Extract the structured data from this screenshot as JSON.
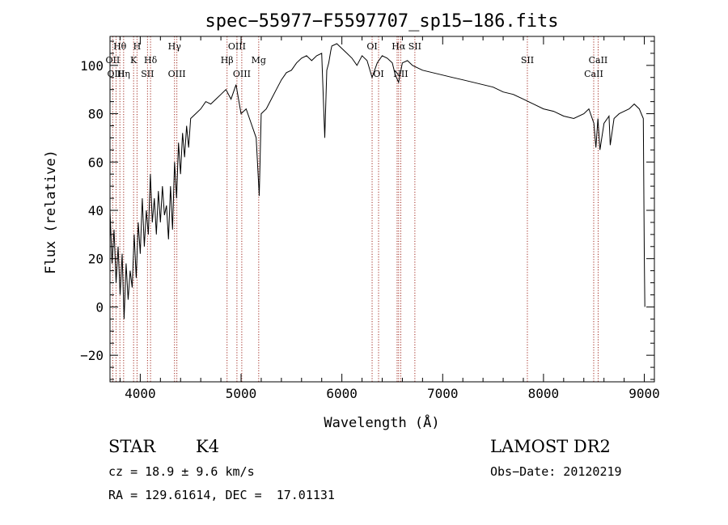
{
  "chart_data": {
    "type": "line",
    "title": "spec−55977−F5597707_sp15−186.fits",
    "xlabel": "Wavelength (Å)",
    "ylabel": "Flux (relative)",
    "xlim": [
      3700,
      9100
    ],
    "ylim": [
      -31,
      112
    ],
    "x_ticks": [
      4000,
      5000,
      6000,
      7000,
      8000,
      9000
    ],
    "y_ticks": [
      -20,
      0,
      20,
      40,
      60,
      80,
      100
    ],
    "series": [
      {
        "x": [
          3700,
          3720,
          3740,
          3760,
          3780,
          3800,
          3820,
          3840,
          3860,
          3880,
          3900,
          3920,
          3940,
          3960,
          3980,
          4000,
          4020,
          4040,
          4060,
          4080,
          4100,
          4120,
          4140,
          4160,
          4180,
          4200,
          4220,
          4240,
          4260,
          4280,
          4300,
          4320,
          4340,
          4360,
          4380,
          4400,
          4420,
          4440,
          4460,
          4480,
          4500,
          4550,
          4600,
          4650,
          4700,
          4750,
          4800,
          4850,
          4900,
          4950,
          5000,
          5050,
          5100,
          5150,
          5180,
          5200,
          5250,
          5300,
          5350,
          5400,
          5450,
          5500,
          5550,
          5600,
          5650,
          5700,
          5750,
          5800,
          5830,
          5850,
          5870,
          5890,
          5900,
          5950,
          6000,
          6050,
          6100,
          6150,
          6200,
          6250,
          6300,
          6350,
          6400,
          6450,
          6500,
          6530,
          6563,
          6600,
          6650,
          6700,
          6750,
          6800,
          6900,
          7000,
          7100,
          7200,
          7300,
          7400,
          7500,
          7600,
          7700,
          7800,
          7850,
          7900,
          8000,
          8100,
          8200,
          8300,
          8400,
          8450,
          8500,
          8520,
          8540,
          8560,
          8600,
          8650,
          8662,
          8700,
          8750,
          8800,
          8850,
          8900,
          8950,
          8990,
          9000,
          9005
        ],
        "y": [
          40,
          18,
          32,
          10,
          25,
          5,
          22,
          -5,
          18,
          3,
          15,
          8,
          30,
          12,
          35,
          22,
          45,
          25,
          40,
          30,
          55,
          35,
          45,
          30,
          48,
          35,
          50,
          38,
          42,
          28,
          50,
          32,
          60,
          45,
          68,
          55,
          72,
          62,
          75,
          66,
          78,
          80,
          82,
          85,
          84,
          86,
          88,
          90,
          86,
          92,
          80,
          82,
          76,
          70,
          46,
          80,
          82,
          86,
          90,
          94,
          97,
          98,
          101,
          103,
          104,
          102,
          104,
          105,
          70,
          98,
          101,
          106,
          108,
          109,
          107,
          105,
          103,
          100,
          104,
          102,
          95,
          101,
          104,
          103,
          101,
          96,
          93,
          101,
          102,
          100,
          99,
          98,
          97,
          96,
          95,
          94,
          93,
          92,
          91,
          89,
          88,
          86,
          85,
          84,
          82,
          81,
          79,
          78,
          80,
          82,
          76,
          66,
          78,
          65,
          76,
          79,
          67,
          78,
          80,
          81,
          82,
          84,
          82,
          78,
          22,
          0
        ]
      }
    ],
    "line_markers": [
      {
        "name": "Hθ",
        "x": 3798,
        "row": 1
      },
      {
        "name": "OII",
        "x": 3727,
        "row": 2
      },
      {
        "name": "OIII",
        "x": 3760,
        "row": 3
      },
      {
        "name": "Hη",
        "x": 3835,
        "row": 3
      },
      {
        "name": "H",
        "x": 3968,
        "row": 1
      },
      {
        "name": "K",
        "x": 3934,
        "row": 2
      },
      {
        "name": "Hδ",
        "x": 4102,
        "row": 2
      },
      {
        "name": "SII",
        "x": 4072,
        "row": 3
      },
      {
        "name": "Hγ",
        "x": 4340,
        "row": 1
      },
      {
        "name": "OIII",
        "x": 4363,
        "row": 3
      },
      {
        "name": "OIII",
        "x": 4959,
        "row": 1
      },
      {
        "name": "Hβ",
        "x": 4861,
        "row": 2
      },
      {
        "name": "Mg",
        "x": 5175,
        "row": 2
      },
      {
        "name": "OIII",
        "x": 5007,
        "row": 3
      },
      {
        "name": "OI",
        "x": 6300,
        "row": 1
      },
      {
        "name": "OI",
        "x": 6364,
        "row": 3
      },
      {
        "name": "Hα",
        "x": 6563,
        "row": 1
      },
      {
        "name": "NII",
        "x": 6584,
        "row": 3
      },
      {
        "name": "NII",
        "x": 6548,
        "row": -1
      },
      {
        "name": "SII",
        "x": 6724,
        "row": 1
      },
      {
        "name": "SII",
        "x": 7840,
        "row": 2
      },
      {
        "name": "CaII",
        "x": 8542,
        "row": 2
      },
      {
        "name": "CaII",
        "x": 8498,
        "row": 3
      }
    ]
  },
  "info": {
    "class": "STAR",
    "subclass": "K4",
    "survey": "LAMOST DR2",
    "cz": "cz = 18.9 ± 9.6 km/s",
    "obs_date": "Obs−Date: 20120219",
    "coords": "RA = 129.61614, DEC =  17.01131"
  }
}
